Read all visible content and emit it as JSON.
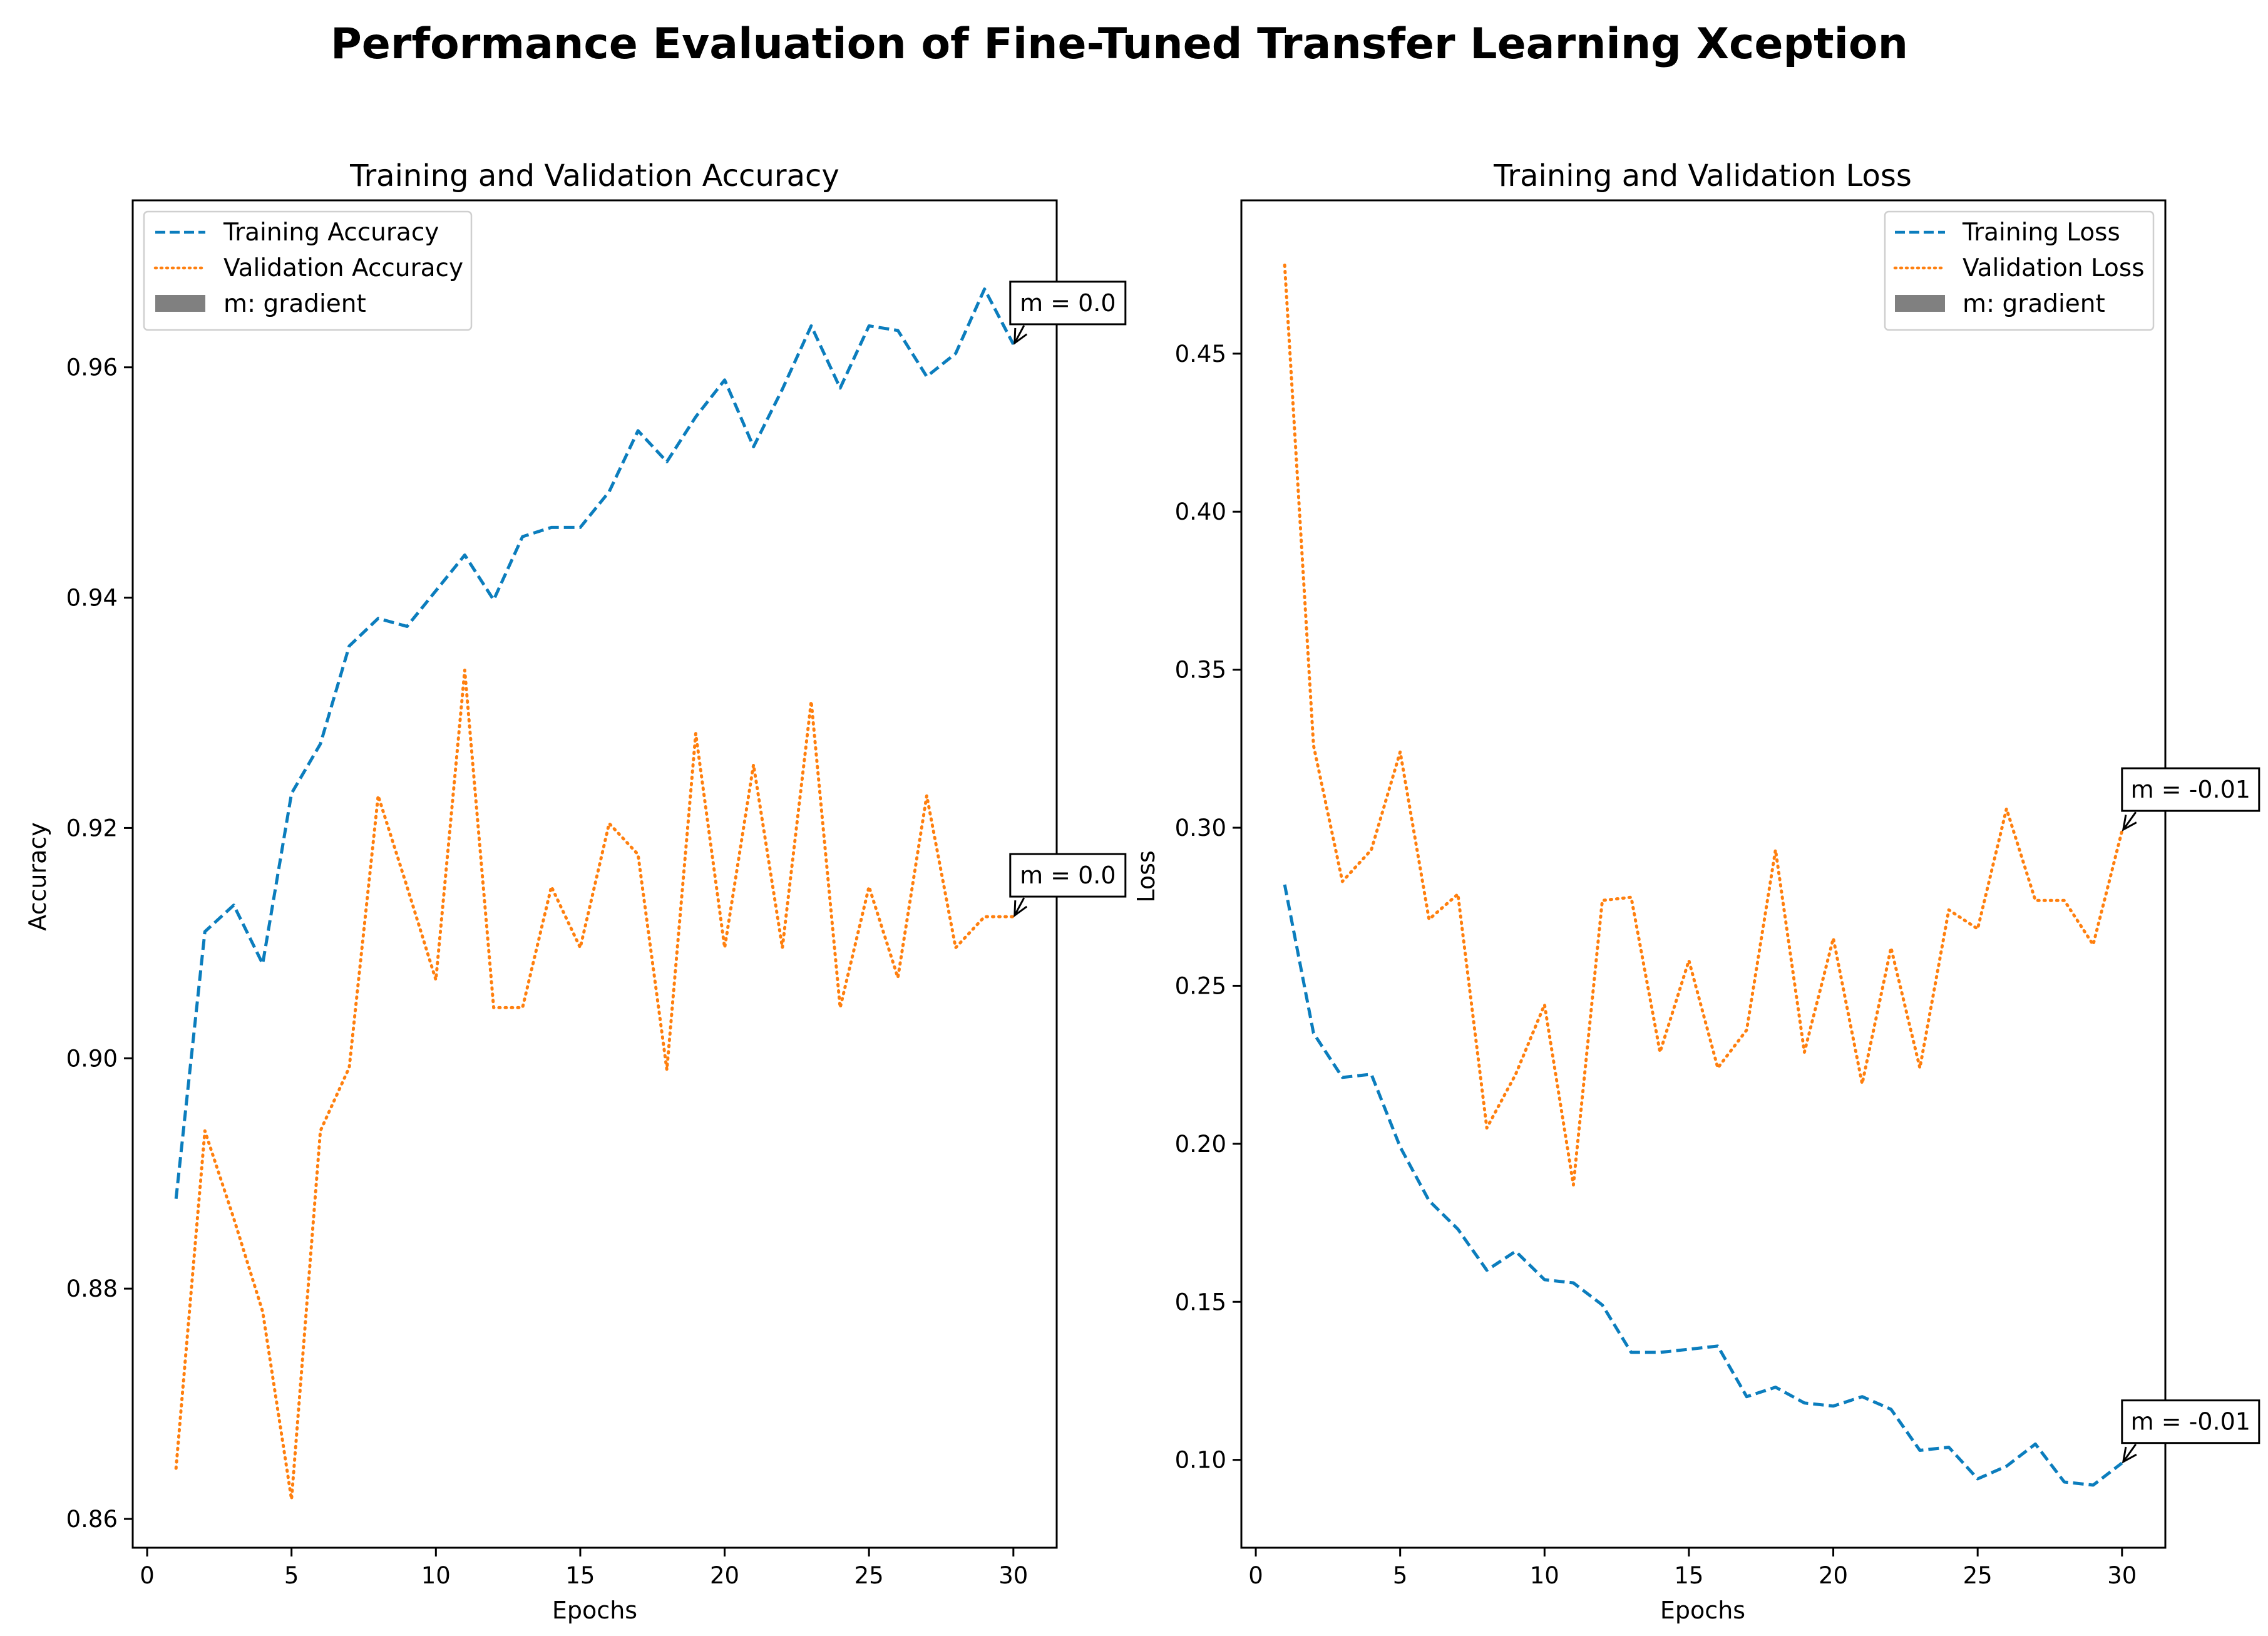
{
  "figure_title": "Performance Evaluation of Fine-Tuned Transfer Learning Xception",
  "colors": {
    "training": "#0b7dbd",
    "validation": "#ff7f0e",
    "gradient_patch": "#808080"
  },
  "chart_data": [
    {
      "type": "line",
      "title": "Training and Validation Accuracy",
      "xlabel": "Epochs",
      "ylabel": "Accuracy",
      "xlim": [
        -0.5,
        31.5
      ],
      "ylim": [
        0.8575,
        0.9745
      ],
      "xticks": [
        0,
        5,
        10,
        15,
        20,
        25,
        30
      ],
      "yticks": [
        0.86,
        0.88,
        0.9,
        0.92,
        0.94,
        0.96
      ],
      "ytick_labels": [
        "0.86",
        "0.88",
        "0.90",
        "0.92",
        "0.94",
        "0.96"
      ],
      "legend_position": "upper left",
      "legend": [
        "Training Accuracy",
        "Validation Accuracy",
        "m: gradient"
      ],
      "x": [
        1,
        2,
        3,
        4,
        5,
        6,
        7,
        8,
        9,
        10,
        11,
        12,
        13,
        14,
        15,
        16,
        17,
        18,
        19,
        20,
        21,
        22,
        23,
        24,
        25,
        26,
        27,
        28,
        29,
        30
      ],
      "series": [
        {
          "name": "Training Accuracy",
          "style": "dashed",
          "values": [
            0.8878,
            0.911,
            0.9133,
            0.9082,
            0.923,
            0.9273,
            0.9358,
            0.9382,
            0.9375,
            0.9406,
            0.9437,
            0.9398,
            0.9453,
            0.9461,
            0.9461,
            0.9492,
            0.9545,
            0.9518,
            0.9557,
            0.9589,
            0.9531,
            0.9581,
            0.9636,
            0.9582,
            0.9636,
            0.9632,
            0.9592,
            0.9612,
            0.9668,
            0.962
          ]
        },
        {
          "name": "Validation Accuracy",
          "style": "dotted",
          "values": [
            0.8644,
            0.8937,
            0.8861,
            0.878,
            0.8617,
            0.8937,
            0.8992,
            0.9228,
            0.9149,
            0.9068,
            0.9337,
            0.9044,
            0.9044,
            0.9149,
            0.9096,
            0.9204,
            0.9177,
            0.899,
            0.9282,
            0.9096,
            0.9255,
            0.9096,
            0.931,
            0.9044,
            0.9149,
            0.907,
            0.9228,
            0.9096,
            0.9123,
            0.9123
          ]
        }
      ],
      "annotations": [
        {
          "text": "m = 0.0",
          "x": 30,
          "y": 0.962
        },
        {
          "text": "m = 0.0",
          "x": 30,
          "y": 0.9123
        }
      ]
    },
    {
      "type": "line",
      "title": "Training and Validation Loss",
      "xlabel": "Epochs",
      "ylabel": "Loss",
      "xlim": [
        -0.5,
        31.5
      ],
      "ylim": [
        0.0722,
        0.4985
      ],
      "xticks": [
        0,
        5,
        10,
        15,
        20,
        25,
        30
      ],
      "yticks": [
        0.1,
        0.15,
        0.2,
        0.25,
        0.3,
        0.35,
        0.4,
        0.45
      ],
      "ytick_labels": [
        "0.10",
        "0.15",
        "0.20",
        "0.25",
        "0.30",
        "0.35",
        "0.40",
        "0.45"
      ],
      "legend_position": "upper right",
      "legend": [
        "Training Loss",
        "Validation Loss",
        "m: gradient"
      ],
      "x": [
        1,
        2,
        3,
        4,
        5,
        6,
        7,
        8,
        9,
        10,
        11,
        12,
        13,
        14,
        15,
        16,
        17,
        18,
        19,
        20,
        21,
        22,
        23,
        24,
        25,
        26,
        27,
        28,
        29,
        30
      ],
      "series": [
        {
          "name": "Training Loss",
          "style": "dashed",
          "values": [
            0.282,
            0.235,
            0.221,
            0.222,
            0.199,
            0.182,
            0.173,
            0.16,
            0.166,
            0.157,
            0.156,
            0.149,
            0.134,
            0.134,
            0.135,
            0.136,
            0.12,
            0.123,
            0.118,
            0.117,
            0.12,
            0.116,
            0.103,
            0.104,
            0.094,
            0.098,
            0.105,
            0.093,
            0.092,
            0.099
          ]
        },
        {
          "name": "Validation Loss",
          "style": "dotted",
          "values": [
            0.478,
            0.326,
            0.283,
            0.293,
            0.324,
            0.271,
            0.279,
            0.205,
            0.222,
            0.244,
            0.187,
            0.277,
            0.278,
            0.229,
            0.258,
            0.224,
            0.236,
            0.293,
            0.229,
            0.265,
            0.219,
            0.262,
            0.224,
            0.274,
            0.268,
            0.306,
            0.277,
            0.277,
            0.263,
            0.299
          ]
        }
      ],
      "annotations": [
        {
          "text": "m = -0.01",
          "x": 30,
          "y": 0.299
        },
        {
          "text": "m = -0.01",
          "x": 30,
          "y": 0.099
        }
      ]
    }
  ]
}
